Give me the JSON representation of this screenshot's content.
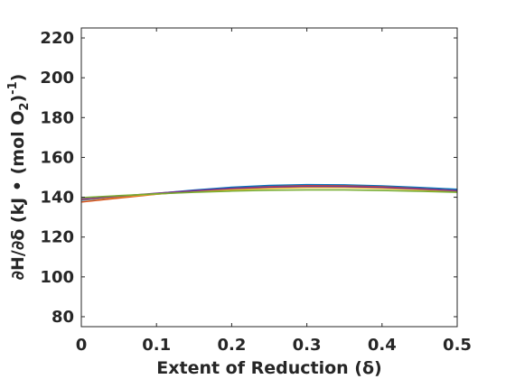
{
  "chart_data": {
    "type": "line",
    "xlabel": "Extent of Reduction (δ)",
    "ylabel": "∂H/∂δ (kJ • (mol O2)-1)",
    "ylabel_parts": {
      "main": "∂H/∂δ (kJ • (mol O",
      "sub": "2",
      "close": ")",
      "sup": "-1",
      "end": ")"
    },
    "xlim": [
      0,
      0.5
    ],
    "ylim": [
      75,
      225
    ],
    "xticks": [
      0,
      0.1,
      0.2,
      0.3,
      0.4,
      0.5
    ],
    "xtick_labels": [
      "0",
      "0.1",
      "0.2",
      "0.3",
      "0.4",
      "0.5"
    ],
    "yticks": [
      80,
      100,
      120,
      140,
      160,
      180,
      200,
      220
    ],
    "ytick_labels": [
      "80",
      "100",
      "120",
      "140",
      "160",
      "180",
      "200",
      "220"
    ],
    "grid": false,
    "x": [
      0,
      0.05,
      0.1,
      0.15,
      0.2,
      0.25,
      0.3,
      0.35,
      0.4,
      0.45,
      0.5
    ],
    "series": [
      {
        "color": "#0072BD",
        "values": [
          138.5,
          140.2,
          141.9,
          143.6,
          145.0,
          145.9,
          146.3,
          146.2,
          145.7,
          144.9,
          144.0
        ]
      },
      {
        "color": "#D95319",
        "values": [
          137.6,
          139.6,
          141.5,
          143.1,
          144.4,
          145.3,
          145.8,
          145.7,
          145.2,
          144.3,
          143.3
        ]
      },
      {
        "color": "#EDB120",
        "values": [
          138.8,
          140.2,
          141.6,
          142.8,
          143.8,
          144.5,
          144.9,
          144.9,
          144.5,
          143.8,
          142.9
        ]
      },
      {
        "color": "#7E2F8E",
        "values": [
          139.0,
          140.5,
          142.0,
          143.3,
          144.4,
          145.1,
          145.5,
          145.4,
          145.0,
          144.2,
          143.3
        ]
      },
      {
        "color": "#77AC30",
        "values": [
          139.8,
          140.8,
          141.7,
          142.5,
          143.1,
          143.5,
          143.7,
          143.7,
          143.4,
          143.0,
          142.5
        ]
      }
    ]
  }
}
